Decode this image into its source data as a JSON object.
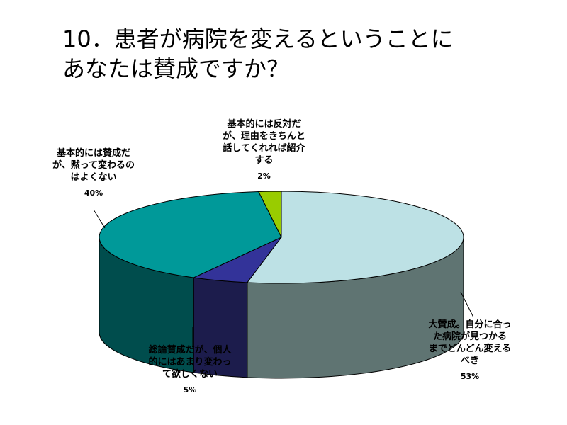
{
  "slide": {
    "title_lines": [
      "10．患者が病院を変えるということに",
      "あなたは賛成ですか？"
    ]
  },
  "chart_data": {
    "type": "pie",
    "style": "3d",
    "title": "10．患者が病院を変えるということにあなたは賛成ですか？",
    "slices": [
      {
        "label": "大賛成。自分に合った病院が見つかるまでどんどん変えるべき",
        "label_lines": [
          "大賛成。自分に合っ",
          "た病院が見つかる",
          "までどんどん変える",
          "べき"
        ],
        "value": 53,
        "value_label": "53%",
        "color": "#bde1e5",
        "side_color": "#5f7472"
      },
      {
        "label": "総論賛成だが、個人的にはあまり変わって欲しくない",
        "label_lines": [
          "総論賛成だが、個人",
          "的にはあまり変わっ",
          "て欲しくない"
        ],
        "value": 5,
        "value_label": "5%",
        "color": "#333399",
        "side_color": "#1c1c4c"
      },
      {
        "label": "基本的には賛成だが、黙って変わるのはよくない",
        "label_lines": [
          "基本的には賛成だ",
          "が、黙って変わるの",
          "はよくない"
        ],
        "value": 40,
        "value_label": "40%",
        "color": "#009999",
        "side_color": "#004d4d"
      },
      {
        "label": "基本的には反対だが、理由をきちんと話してくれれば紹介する",
        "label_lines": [
          "基本的には反対だ",
          "が、理由をきちんと",
          "話してくれれば紹介",
          "する"
        ],
        "value": 2,
        "value_label": "2%",
        "color": "#99cc00",
        "side_color": "#4c6600"
      }
    ]
  }
}
